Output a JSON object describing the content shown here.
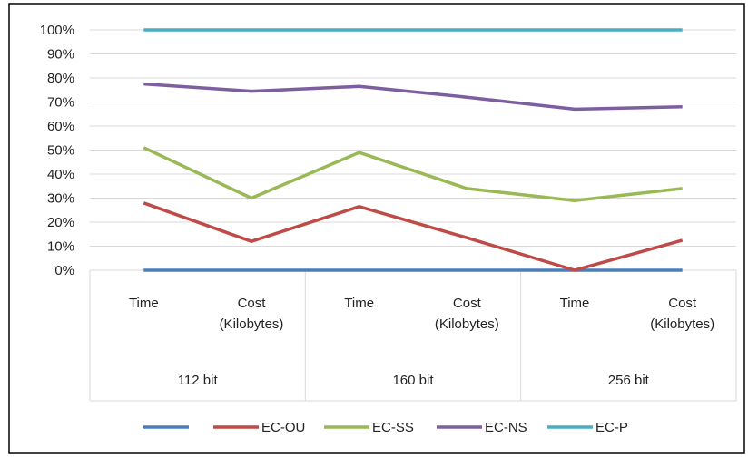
{
  "chart_data": {
    "type": "line",
    "title": "",
    "xlabel": "",
    "ylabel": "",
    "ylim": [
      0,
      100
    ],
    "yticks": [
      "0%",
      "10%",
      "20%",
      "30%",
      "40%",
      "50%",
      "60%",
      "70%",
      "80%",
      "90%",
      "100%"
    ],
    "categories": [
      {
        "label": [
          "Time"
        ],
        "group": "112 bit"
      },
      {
        "label": [
          "Cost",
          "(Kilobytes)"
        ],
        "group": "112 bit"
      },
      {
        "label": [
          "Time"
        ],
        "group": "160 bit"
      },
      {
        "label": [
          "Cost",
          "(Kilobytes)"
        ],
        "group": "160 bit"
      },
      {
        "label": [
          "Time"
        ],
        "group": "256 bit"
      },
      {
        "label": [
          "Cost",
          "(Kilobytes)"
        ],
        "group": "256 bit"
      }
    ],
    "groups": [
      "112 bit",
      "160 bit",
      "256 bit"
    ],
    "grid": "horizontal",
    "legend_position": "bottom",
    "series": [
      {
        "name": "",
        "color": "#4a7ebb",
        "values": [
          0,
          0,
          0,
          0,
          0,
          0
        ]
      },
      {
        "name": "EC-OU",
        "color": "#be4b48",
        "values": [
          28,
          12,
          26.5,
          13.5,
          0,
          12.5
        ]
      },
      {
        "name": "EC-SS",
        "color": "#98b954",
        "values": [
          51,
          30,
          49,
          34,
          29,
          34
        ]
      },
      {
        "name": "EC-NS",
        "color": "#7d5fa0",
        "values": [
          77.5,
          74.5,
          76.5,
          72,
          67,
          68
        ]
      },
      {
        "name": "EC-P",
        "color": "#4bacc6",
        "values": [
          100,
          100,
          100,
          100,
          100,
          100
        ]
      }
    ]
  }
}
